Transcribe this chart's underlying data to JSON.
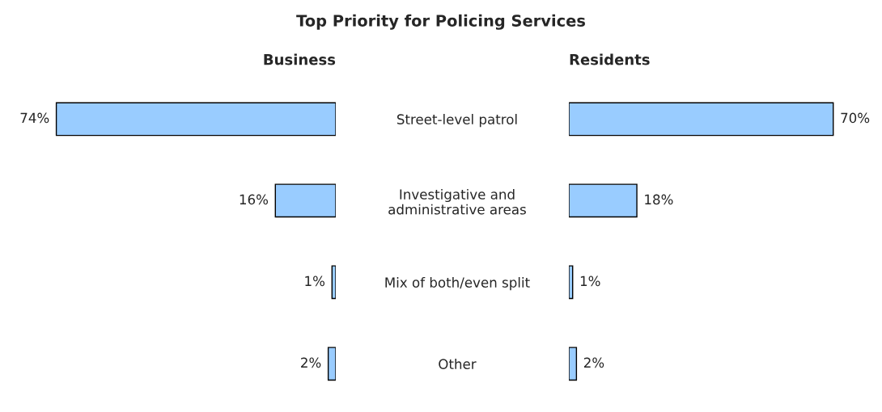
{
  "chart_data": [
    {
      "type": "bar",
      "orientation": "horizontal",
      "title": "Top Priority for Policing Services",
      "subtitle": "Business",
      "categories": [
        "Street-level patrol",
        "Investigative and\nadministrative areas",
        "Mix of both/even split",
        "Other"
      ],
      "values": [
        74,
        16,
        1,
        2
      ],
      "value_labels": [
        "74%",
        "16%",
        "1%",
        "2%"
      ],
      "color": "#99ccff",
      "tick_labels": "y"
    },
    {
      "type": "bar",
      "orientation": "horizontal",
      "subtitle": "Residents",
      "categories": [
        null,
        null,
        null,
        null
      ],
      "values": [
        70,
        18,
        1,
        2
      ],
      "value_labels": [
        "70%",
        "18%",
        "1%",
        "2%"
      ],
      "color": "#99ccff",
      "tick_labels": false
    }
  ]
}
